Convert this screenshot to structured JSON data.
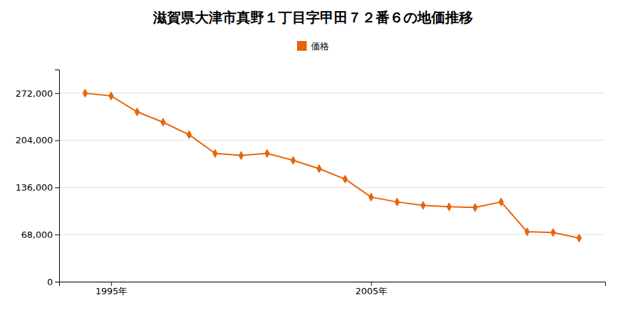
{
  "chart_data": {
    "type": "line",
    "title": "滋賀県大津市真野１丁目字甲田７２番６の地価推移",
    "x": [
      1994,
      1995,
      1996,
      1997,
      1998,
      1999,
      2000,
      2001,
      2002,
      2003,
      2004,
      2005,
      2006,
      2007,
      2008,
      2009,
      2010,
      2011,
      2012,
      2013
    ],
    "series": [
      {
        "name": "価格",
        "color": "#e8650a",
        "marker": "diamond",
        "values": [
          272000,
          268000,
          245000,
          230000,
          212000,
          185000,
          182000,
          185000,
          175000,
          163000,
          148000,
          122000,
          115000,
          110000,
          108000,
          107000,
          115000,
          72000,
          71000,
          63000
        ]
      }
    ],
    "xlim": [
      1993,
      2014
    ],
    "xticks": [
      {
        "value": 1995,
        "label": "1995年"
      },
      {
        "value": 2005,
        "label": "2005年"
      }
    ],
    "ylim": [
      0,
      306000
    ],
    "yticks": [
      0,
      {
        "value": 68000,
        "label": "68,000"
      },
      {
        "value": 136000,
        "label": "136,000"
      },
      {
        "value": 204000,
        "label": "204,000"
      },
      {
        "value": 272000,
        "label": "272,000"
      }
    ],
    "grid": true,
    "legend": "top"
  }
}
